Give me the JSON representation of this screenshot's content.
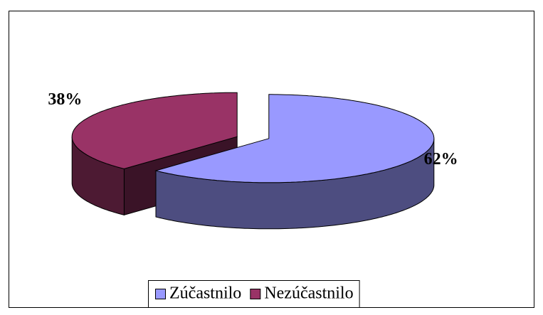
{
  "chart_data": {
    "type": "pie3d",
    "categories": [
      "Zúčastnilo",
      "Nezúčastnilo"
    ],
    "values": [
      62,
      38
    ],
    "value_labels": [
      "62%",
      "38%"
    ],
    "colors": [
      "#9999ff",
      "#993366"
    ],
    "legend": "bottom"
  }
}
